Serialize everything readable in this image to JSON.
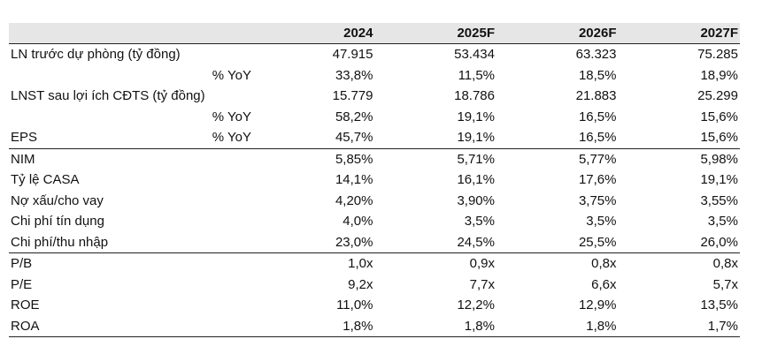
{
  "table": {
    "columns": [
      "2024",
      "2025F",
      "2026F",
      "2027F"
    ],
    "rows": [
      {
        "label": "LN trước dự phòng (tỷ đồng)",
        "sub": "",
        "values": [
          "47.915",
          "53.434",
          "63.323",
          "75.285"
        ]
      },
      {
        "label": "",
        "sub": "% YoY",
        "values": [
          "33,8%",
          "11,5%",
          "18,5%",
          "18,9%"
        ]
      },
      {
        "label": "LNST sau lợi ích CĐTS (tỷ đồng)",
        "sub": "",
        "values": [
          "15.779",
          "18.786",
          "21.883",
          "25.299"
        ]
      },
      {
        "label": "",
        "sub": "% YoY",
        "values": [
          "58,2%",
          "19,1%",
          "16,5%",
          "15,6%"
        ]
      },
      {
        "label": "EPS",
        "sub": "% YoY",
        "values": [
          "45,7%",
          "19,1%",
          "16,5%",
          "15,6%"
        ]
      },
      {
        "label": "NIM",
        "sub": "",
        "values": [
          "5,85%",
          "5,71%",
          "5,77%",
          "5,98%"
        ]
      },
      {
        "label": "Tỷ lệ CASA",
        "sub": "",
        "values": [
          "14,1%",
          "16,1%",
          "17,6%",
          "19,1%"
        ]
      },
      {
        "label": "Nợ xấu/cho vay",
        "sub": "",
        "values": [
          "4,20%",
          "3,90%",
          "3,75%",
          "3,55%"
        ]
      },
      {
        "label": "Chi phí tín dụng",
        "sub": "",
        "values": [
          "4,0%",
          "3,5%",
          "3,5%",
          "3,5%"
        ]
      },
      {
        "label": "Chi phí/thu nhập",
        "sub": "",
        "values": [
          "23,0%",
          "24,5%",
          "25,5%",
          "26,0%"
        ]
      },
      {
        "label": "P/B",
        "sub": "",
        "values": [
          "1,0x",
          "0,9x",
          "0,8x",
          "0,8x"
        ]
      },
      {
        "label": "P/E",
        "sub": "",
        "values": [
          "9,2x",
          "7,7x",
          "6,6x",
          "5,7x"
        ]
      },
      {
        "label": "ROE",
        "sub": "",
        "values": [
          "11,0%",
          "12,2%",
          "12,9%",
          "13,5%"
        ]
      },
      {
        "label": "ROA",
        "sub": "",
        "values": [
          "1,8%",
          "1,8%",
          "1,8%",
          "1,7%"
        ]
      }
    ]
  }
}
